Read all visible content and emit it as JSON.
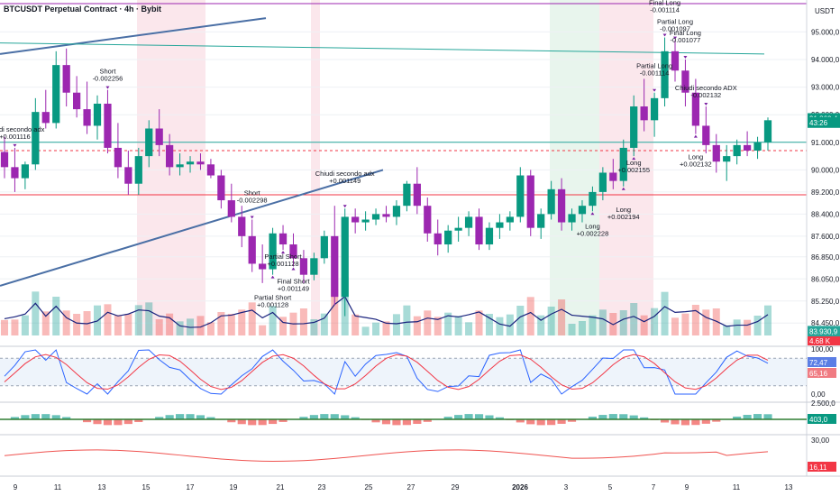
{
  "header": {
    "title": "BTCUSDT Perpetual Contract · 4h · Bybit"
  },
  "chart_data": {
    "type": "candlestick",
    "currency": "USDT",
    "price_axis_ticks": [
      "95.000,0",
      "94.000,0",
      "93.000,0",
      "92.000,0",
      "91.000,0",
      "90.000,0",
      "89.200,0",
      "88.400,0",
      "87.600,0",
      "86.850,0",
      "86.050,0",
      "85.250,0",
      "84.450,0"
    ],
    "price_range": [
      84000,
      95700
    ],
    "x_ticks": [
      "9",
      "11",
      "13",
      "15",
      "17",
      "19",
      "21",
      "23",
      "25",
      "27",
      "29",
      "2026",
      "3",
      "5",
      "7",
      "9",
      "11",
      "13"
    ],
    "price_badges": [
      {
        "text": "91.860,4",
        "color": "#089981",
        "value": 91860
      },
      {
        "text": "43:26",
        "color": "#089981",
        "value": 91720
      },
      {
        "text": "83.930,9",
        "color": "#26a69a",
        "value": 84150
      }
    ],
    "horizontal_levels": [
      {
        "value": 91000,
        "color": "#26a69a",
        "style": "solid"
      },
      {
        "value": 90700,
        "color": "#f23645",
        "style": "dashed"
      },
      {
        "value": 89100,
        "color": "#f23645",
        "style": "solid"
      }
    ],
    "candles": [
      [
        90650,
        91200,
        89700,
        90100
      ],
      [
        90100,
        90800,
        89200,
        89700
      ],
      [
        89700,
        90300,
        89300,
        90200
      ],
      [
        90200,
        92600,
        90000,
        92100
      ],
      [
        92100,
        92900,
        91500,
        91700
      ],
      [
        91700,
        94300,
        91500,
        93800
      ],
      [
        93800,
        94400,
        92300,
        92800
      ],
      [
        92800,
        93400,
        91900,
        92200
      ],
      [
        92200,
        93200,
        91300,
        91600
      ],
      [
        91600,
        92700,
        91100,
        92400
      ],
      [
        92400,
        92900,
        90600,
        90800
      ],
      [
        90800,
        91700,
        89700,
        90100
      ],
      [
        90100,
        90700,
        89100,
        89500
      ],
      [
        89500,
        90800,
        89100,
        90500
      ],
      [
        90500,
        91800,
        90100,
        91500
      ],
      [
        91500,
        92200,
        90500,
        90900
      ],
      [
        90900,
        91300,
        89800,
        90100
      ],
      [
        90100,
        90600,
        89800,
        90200
      ],
      [
        90200,
        90500,
        89900,
        90300
      ],
      [
        90300,
        90600,
        90000,
        90200
      ],
      [
        90200,
        90400,
        89700,
        89800
      ],
      [
        89800,
        90000,
        88600,
        88900
      ],
      [
        88900,
        89500,
        88100,
        88300
      ],
      [
        88300,
        88700,
        87200,
        87600
      ],
      [
        87600,
        88200,
        86300,
        86600
      ],
      [
        86600,
        87300,
        85900,
        86400
      ],
      [
        86400,
        87900,
        86200,
        87700
      ],
      [
        87700,
        88000,
        87100,
        87300
      ],
      [
        87300,
        87700,
        86500,
        86800
      ],
      [
        86800,
        87100,
        85900,
        86200
      ],
      [
        86200,
        87000,
        86000,
        86800
      ],
      [
        86800,
        87800,
        86600,
        87600
      ],
      [
        87600,
        88700,
        85100,
        85400
      ],
      [
        85400,
        88600,
        84700,
        88300
      ],
      [
        88300,
        88600,
        87700,
        88100
      ],
      [
        88100,
        88500,
        87800,
        88200
      ],
      [
        88200,
        88600,
        88000,
        88400
      ],
      [
        88400,
        88700,
        88100,
        88300
      ],
      [
        88300,
        88900,
        88000,
        88700
      ],
      [
        88700,
        89600,
        88500,
        89500
      ],
      [
        89500,
        90100,
        88400,
        88700
      ],
      [
        88700,
        89000,
        87400,
        87700
      ],
      [
        87700,
        88200,
        86900,
        87300
      ],
      [
        87300,
        88000,
        87000,
        87800
      ],
      [
        87800,
        88300,
        87400,
        87900
      ],
      [
        87900,
        88500,
        87600,
        88300
      ],
      [
        88300,
        88600,
        87100,
        87300
      ],
      [
        87300,
        88100,
        87100,
        87900
      ],
      [
        87900,
        88400,
        87500,
        88100
      ],
      [
        88100,
        88500,
        87800,
        88300
      ],
      [
        88300,
        90100,
        88100,
        89800
      ],
      [
        89800,
        90000,
        87600,
        87900
      ],
      [
        87900,
        88600,
        87500,
        88400
      ],
      [
        88400,
        89600,
        88200,
        89300
      ],
      [
        89300,
        89700,
        87800,
        88100
      ],
      [
        88100,
        88600,
        87800,
        88400
      ],
      [
        88400,
        88900,
        88100,
        88700
      ],
      [
        88700,
        89400,
        88500,
        89200
      ],
      [
        89200,
        90100,
        88900,
        89900
      ],
      [
        89900,
        90400,
        89300,
        89600
      ],
      [
        89600,
        91100,
        89400,
        90800
      ],
      [
        90800,
        92700,
        90500,
        92300
      ],
      [
        92300,
        93300,
        91400,
        91800
      ],
      [
        91800,
        92800,
        91200,
        92600
      ],
      [
        92600,
        94800,
        92300,
        94300
      ],
      [
        94300,
        94700,
        93200,
        93600
      ],
      [
        93600,
        94000,
        92300,
        92800
      ],
      [
        92800,
        93300,
        91300,
        91600
      ],
      [
        91600,
        92300,
        90600,
        90900
      ],
      [
        90900,
        91300,
        89900,
        90300
      ],
      [
        90300,
        90900,
        89600,
        90500
      ],
      [
        90500,
        91100,
        90200,
        90900
      ],
      [
        90900,
        91400,
        90500,
        90700
      ],
      [
        90700,
        91200,
        90400,
        91000
      ],
      [
        91000,
        91900,
        90700,
        91800
      ]
    ],
    "indicators": {
      "stoch_rsi": {
        "axis_ticks": [
          "100,00",
          "0,00"
        ],
        "k_value": "72,47",
        "d_value": "65,16",
        "k_color": "#2962ff",
        "d_color": "#f23645"
      },
      "macd": {
        "axis_ticks": [
          "2.500,0"
        ],
        "value": "403,0",
        "value_color": "#089981"
      },
      "adx": {
        "axis_ticks": [
          "30,00"
        ],
        "value": "16,11",
        "value_color": "#f23645"
      },
      "volume_badge": {
        "text": "4.68 K",
        "color": "#f23645"
      }
    },
    "signals": [
      {
        "label": "Short",
        "price_text": "-0.002256",
        "candle": 10,
        "side": "short"
      },
      {
        "label": "Short",
        "price_text": "-0.002298",
        "candle": 24,
        "side": "short"
      },
      {
        "label": "Partial Short",
        "price_text": "+0.001128",
        "candle": 26,
        "side": "exit"
      },
      {
        "label": "Partial Short",
        "price_text": "+0.001128",
        "candle": 27,
        "side": "exit"
      },
      {
        "label": "Final Short",
        "price_text": "+0.001149",
        "candle": 28,
        "side": "exit"
      },
      {
        "label": "Chiudi secondo adx",
        "price_text": "+0.001149",
        "candle": 33,
        "side": "exit"
      },
      {
        "label": "Chiudi secondo adx",
        "price_text": "+0.001116",
        "candle": 1,
        "side": "exit"
      },
      {
        "label": "Long",
        "price_text": "+0.002228",
        "candle": 57,
        "side": "long"
      },
      {
        "label": "Long",
        "price_text": "+0.002194",
        "candle": 60,
        "side": "long"
      },
      {
        "label": "Long",
        "price_text": "+0.002155",
        "candle": 61,
        "side": "long"
      },
      {
        "label": "Partial Long",
        "price_text": "-0.001114",
        "candle": 63,
        "side": "exit"
      },
      {
        "label": "Final Long",
        "price_text": "-0.001114",
        "candle": 64,
        "side": "exit"
      },
      {
        "label": "Partial Long",
        "price_text": "-0.001097",
        "candle": 65,
        "side": "exit"
      },
      {
        "label": "Final Long",
        "price_text": "-0.001077",
        "candle": 66,
        "side": "exit"
      },
      {
        "label": "Long",
        "price_text": "+0.002132",
        "candle": 67,
        "side": "long"
      },
      {
        "label": "Chiudi secondo ADX",
        "price_text": "-0.002132",
        "candle": 68,
        "side": "exit"
      }
    ]
  }
}
